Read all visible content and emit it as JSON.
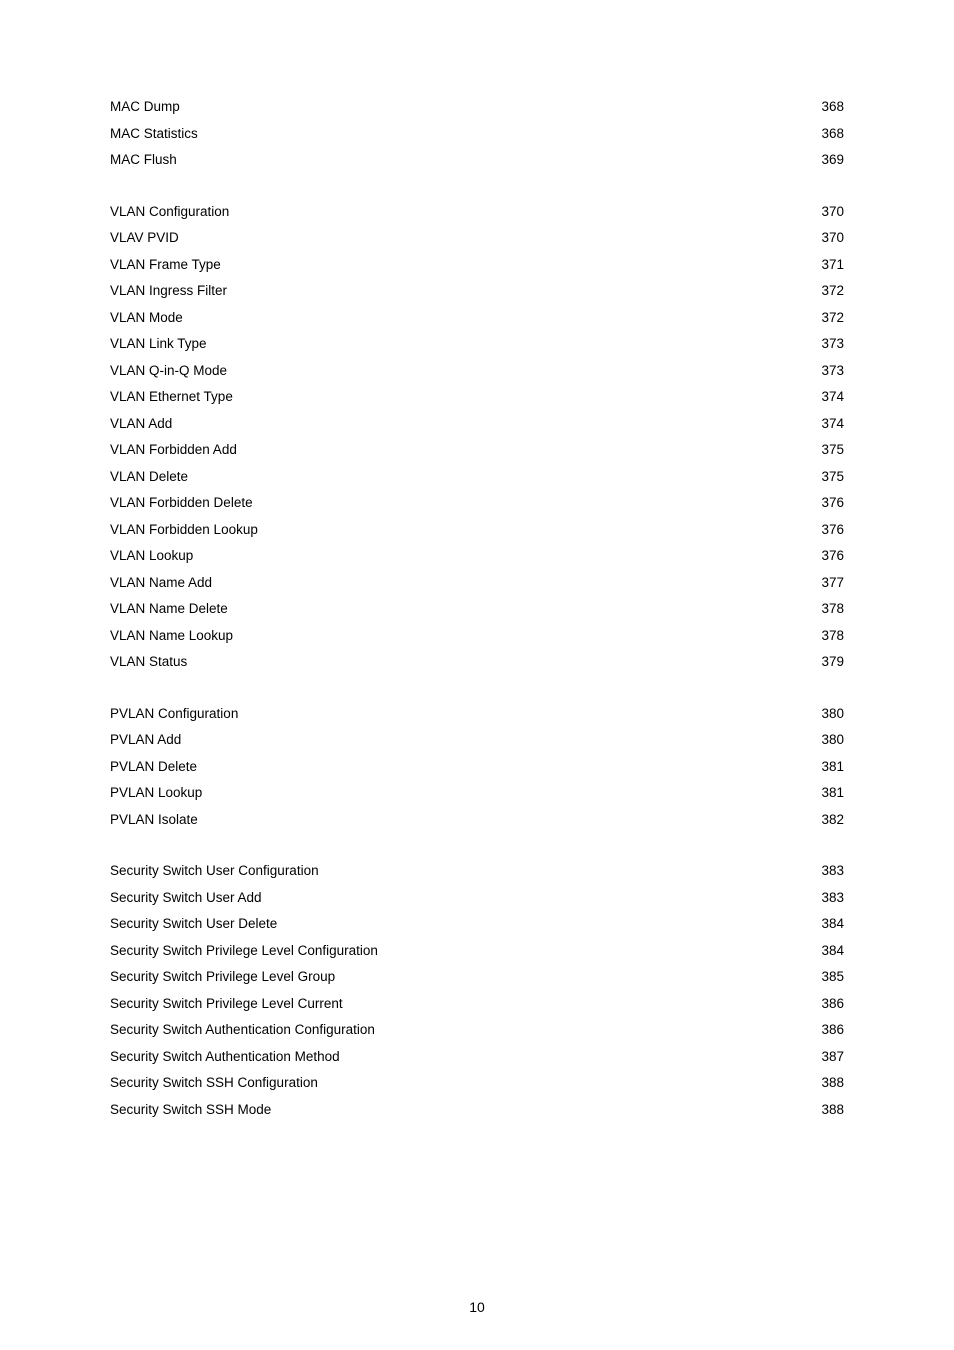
{
  "toc": {
    "sections": [
      {
        "entries": [
          {
            "label": "MAC Dump",
            "page": "368"
          },
          {
            "label": "MAC Statistics ",
            "page": "368"
          },
          {
            "label": "MAC Flush",
            "page": "369"
          }
        ]
      },
      {
        "entries": [
          {
            "label": "VLAN Configuration",
            "page": "370"
          },
          {
            "label": "VLAV PVID",
            "page": "370"
          },
          {
            "label": "VLAN Frame Type",
            "page": "371"
          },
          {
            "label": "VLAN Ingress Filter ",
            "page": "372"
          },
          {
            "label": "VLAN Mode",
            "page": "372"
          },
          {
            "label": "VLAN Link Type",
            "page": "373"
          },
          {
            "label": "VLAN Q-in-Q Mode ",
            "page": "373"
          },
          {
            "label": "VLAN Ethernet Type",
            "page": "374"
          },
          {
            "label": "VLAN Add",
            "page": "374"
          },
          {
            "label": "VLAN Forbidden Add",
            "page": "375"
          },
          {
            "label": "VLAN Delete",
            "page": "375"
          },
          {
            "label": "VLAN Forbidden Delete",
            "page": "376"
          },
          {
            "label": "VLAN Forbidden Lookup ",
            "page": "376"
          },
          {
            "label": "VLAN Lookup ",
            "page": "376"
          },
          {
            "label": "VLAN Name Add ",
            "page": "377"
          },
          {
            "label": "VLAN Name Delete ",
            "page": "378"
          },
          {
            "label": "VLAN Name Lookup",
            "page": "378"
          },
          {
            "label": "VLAN Status",
            "page": "379"
          }
        ]
      },
      {
        "entries": [
          {
            "label": "PVLAN Configuration ",
            "page": "380"
          },
          {
            "label": "PVLAN Add ",
            "page": "380"
          },
          {
            "label": "PVLAN Delete ",
            "page": "381"
          },
          {
            "label": "PVLAN Lookup",
            "page": "381"
          },
          {
            "label": "PVLAN Isolate ",
            "page": "382"
          }
        ]
      },
      {
        "entries": [
          {
            "label": "Security Switch User Configuration ",
            "page": "383"
          },
          {
            "label": "Security Switch User Add ",
            "page": "383"
          },
          {
            "label": "Security Switch User Delete",
            "page": "384"
          },
          {
            "label": "Security Switch Privilege Level Configuration ",
            "page": "384"
          },
          {
            "label": "Security Switch Privilege Level Group",
            "page": "385"
          },
          {
            "label": "Security Switch Privilege Level Current",
            "page": "386"
          },
          {
            "label": "Security Switch Authentication Configuration ",
            "page": "386"
          },
          {
            "label": "Security Switch Authentication Method ",
            "page": "387"
          },
          {
            "label": "Security Switch SSH Configuration ",
            "page": "388"
          },
          {
            "label": "Security Switch SSH Mode",
            "page": "388"
          }
        ]
      }
    ]
  },
  "footer": {
    "page_number": "10"
  }
}
